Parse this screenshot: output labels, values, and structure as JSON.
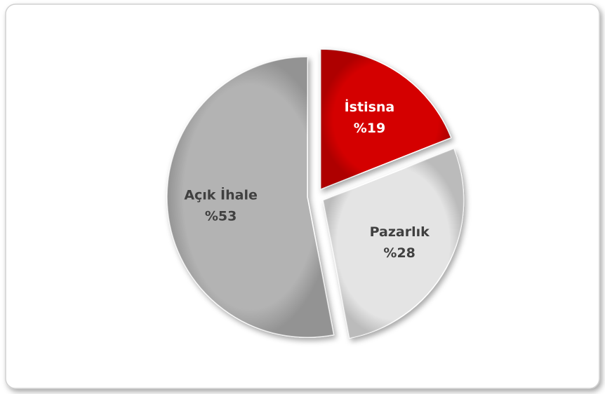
{
  "chart_data": {
    "type": "pie",
    "categories": [
      "İstisna",
      "Pazarlık",
      "Açık İhale"
    ],
    "values": [
      19,
      28,
      53
    ],
    "value_labels": [
      "%19",
      "%28",
      "%53"
    ],
    "colors": [
      "#d40000",
      "#e4e4e4",
      "#b3b3b3"
    ],
    "label_colors": [
      "#ffffff",
      "#404040",
      "#404040"
    ]
  }
}
